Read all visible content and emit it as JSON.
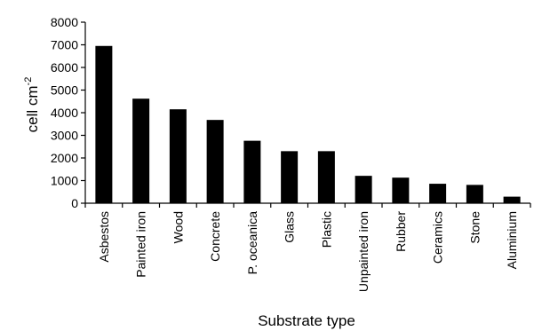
{
  "chart_data": {
    "type": "bar",
    "categories": [
      "Asbestos",
      "Painted iron",
      "Wood",
      "Concrete",
      "P. oceanica",
      "Glass",
      "Plastic",
      "Unpainted iron",
      "Rubber",
      "Ceramics",
      "Stone",
      "Aluminium"
    ],
    "values": [
      6950,
      4620,
      4150,
      3680,
      2760,
      2300,
      2300,
      1210,
      1130,
      860,
      810,
      290
    ],
    "title": "",
    "xlabel": "Substrate type",
    "ylabel_main": "cell cm",
    "ylabel_superscript": "-2",
    "ylim": [
      0,
      8000
    ],
    "yticks": [
      "0",
      "1000",
      "2000",
      "3000",
      "4000",
      "5000",
      "6000",
      "7000",
      "8000"
    ],
    "grid": false,
    "bar_color": "#000000"
  }
}
